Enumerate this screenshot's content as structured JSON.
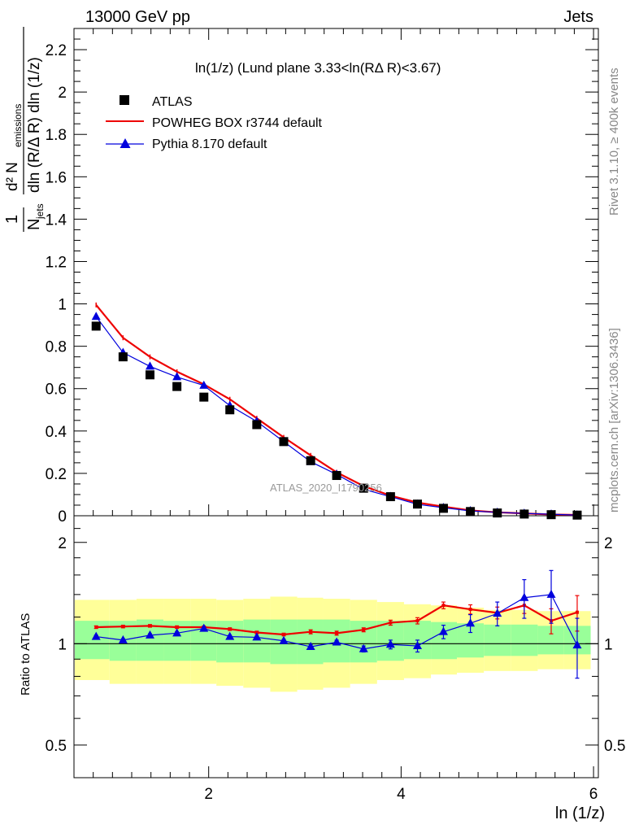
{
  "header": {
    "left": "13000 GeV pp",
    "right": "Jets"
  },
  "side_texts": {
    "rivet": "Rivet 3.1.10, ≥ 400k events",
    "mcplots": "mcplots.cern.ch [arXiv:1306.3436]"
  },
  "watermark": "ATLAS_2020_I1790256",
  "plot_title": "ln(1/z) (Lund plane 3.33<ln(RΔ R)<3.67)",
  "ylabel_top": {
    "frac_num": "1",
    "frac_den": "N",
    "frac_den_sub": "jets",
    "main": "d² N",
    "main_sub": "emissions",
    "den": "dln (R/Δ R) dln (1/z)"
  },
  "ylabel_bottom": "Ratio to ATLAS",
  "xlabel": "ln (1/z)",
  "colors": {
    "data": "#000000",
    "powheg": "#ee0000",
    "pythia": "#0000dd",
    "band_inner": "#99ff99",
    "band_outer": "#ffff99"
  },
  "legend": {
    "items": [
      {
        "label": "ATLAS",
        "style": "square",
        "color": "#000000"
      },
      {
        "label": "POWHEG BOX r3744 default",
        "style": "line",
        "color": "#ee0000"
      },
      {
        "label": "Pythia 8.170 default",
        "style": "triangle",
        "color": "#0000dd"
      }
    ]
  },
  "chart_data": {
    "type": "line",
    "x": [
      0.83,
      1.11,
      1.39,
      1.67,
      1.95,
      2.22,
      2.5,
      2.78,
      3.06,
      3.33,
      3.61,
      3.89,
      4.17,
      4.44,
      4.72,
      5.0,
      5.28,
      5.56,
      5.83
    ],
    "xlim": [
      0.6,
      6.05
    ],
    "xticks": [
      2,
      4,
      6
    ],
    "top_ylim": [
      0,
      2.3
    ],
    "top_yticks": [
      0,
      0.2,
      0.4,
      0.6,
      0.8,
      1,
      1.2,
      1.4,
      1.6,
      1.8,
      2,
      2.2
    ],
    "top_ytick_labels": [
      "0",
      "0.2",
      "0.4",
      "0.6",
      "0.8",
      "1",
      "1.2",
      "1.4",
      "1.6",
      "1.8",
      "2",
      "2.2"
    ],
    "ratio_ylim": [
      0.4,
      2.4
    ],
    "ratio_log": true,
    "ratio_yticks": [
      0.5,
      1,
      2
    ],
    "ratio_ytick_labels": [
      "0.5",
      "1",
      "2"
    ],
    "series": [
      {
        "name": "ATLAS",
        "marker": "square",
        "values": [
          0.895,
          0.75,
          0.665,
          0.61,
          0.56,
          0.5,
          0.43,
          0.35,
          0.26,
          0.19,
          0.13,
          0.09,
          0.055,
          0.035,
          0.02,
          0.013,
          0.008,
          0.005,
          0.003
        ]
      },
      {
        "name": "POWHEG BOX r3744 default",
        "marker": "line",
        "values": [
          0.995,
          0.84,
          0.75,
          0.68,
          0.62,
          0.55,
          0.46,
          0.37,
          0.285,
          0.205,
          0.14,
          0.095,
          0.062,
          0.043,
          0.025,
          0.016,
          0.011,
          0.006,
          0.004
        ]
      },
      {
        "name": "Pythia 8.170 default",
        "marker": "triangle",
        "values": [
          0.94,
          0.77,
          0.705,
          0.655,
          0.615,
          0.52,
          0.445,
          0.35,
          0.255,
          0.195,
          0.125,
          0.09,
          0.054,
          0.038,
          0.023,
          0.016,
          0.011,
          0.0072,
          0.003
        ]
      }
    ],
    "ratio_series": [
      {
        "name": "POWHEG BOX r3744 default",
        "values": [
          1.12,
          1.125,
          1.13,
          1.12,
          1.12,
          1.105,
          1.08,
          1.065,
          1.085,
          1.075,
          1.1,
          1.155,
          1.17,
          1.3,
          1.265,
          1.235,
          1.3,
          1.17,
          1.24
        ],
        "errors": [
          0.01,
          0.01,
          0.01,
          0.01,
          0.01,
          0.01,
          0.01,
          0.01,
          0.015,
          0.015,
          0.015,
          0.02,
          0.025,
          0.03,
          0.04,
          0.05,
          0.07,
          0.1,
          0.15
        ]
      },
      {
        "name": "Pythia 8.170 default",
        "values": [
          1.05,
          1.025,
          1.06,
          1.075,
          1.11,
          1.05,
          1.045,
          1.02,
          0.98,
          1.01,
          0.965,
          0.995,
          0.985,
          1.085,
          1.15,
          1.23,
          1.37,
          1.4,
          0.99
        ],
        "errors": [
          0.01,
          0.01,
          0.01,
          0.01,
          0.01,
          0.01,
          0.01,
          0.01,
          0.015,
          0.015,
          0.02,
          0.03,
          0.04,
          0.05,
          0.07,
          0.1,
          0.18,
          0.25,
          0.2
        ]
      }
    ],
    "bands": {
      "edges": [
        0.6,
        0.97,
        1.25,
        1.53,
        1.81,
        2.08,
        2.36,
        2.64,
        2.92,
        3.19,
        3.47,
        3.75,
        4.03,
        4.31,
        4.58,
        4.86,
        5.14,
        5.42,
        5.69,
        5.97
      ],
      "inner_lo": [
        0.9,
        0.89,
        0.89,
        0.89,
        0.89,
        0.88,
        0.88,
        0.87,
        0.87,
        0.88,
        0.88,
        0.89,
        0.9,
        0.9,
        0.91,
        0.92,
        0.92,
        0.93,
        0.93
      ],
      "inner_hi": [
        1.17,
        1.17,
        1.18,
        1.17,
        1.17,
        1.17,
        1.18,
        1.18,
        1.18,
        1.18,
        1.17,
        1.17,
        1.17,
        1.16,
        1.15,
        1.14,
        1.14,
        1.13,
        1.13
      ],
      "outer_lo": [
        0.78,
        0.76,
        0.76,
        0.76,
        0.76,
        0.75,
        0.74,
        0.72,
        0.73,
        0.74,
        0.76,
        0.78,
        0.79,
        0.81,
        0.82,
        0.83,
        0.83,
        0.84,
        0.84
      ],
      "outer_hi": [
        1.35,
        1.35,
        1.36,
        1.36,
        1.36,
        1.35,
        1.36,
        1.38,
        1.37,
        1.36,
        1.35,
        1.33,
        1.31,
        1.3,
        1.28,
        1.26,
        1.26,
        1.25,
        1.25
      ]
    }
  }
}
